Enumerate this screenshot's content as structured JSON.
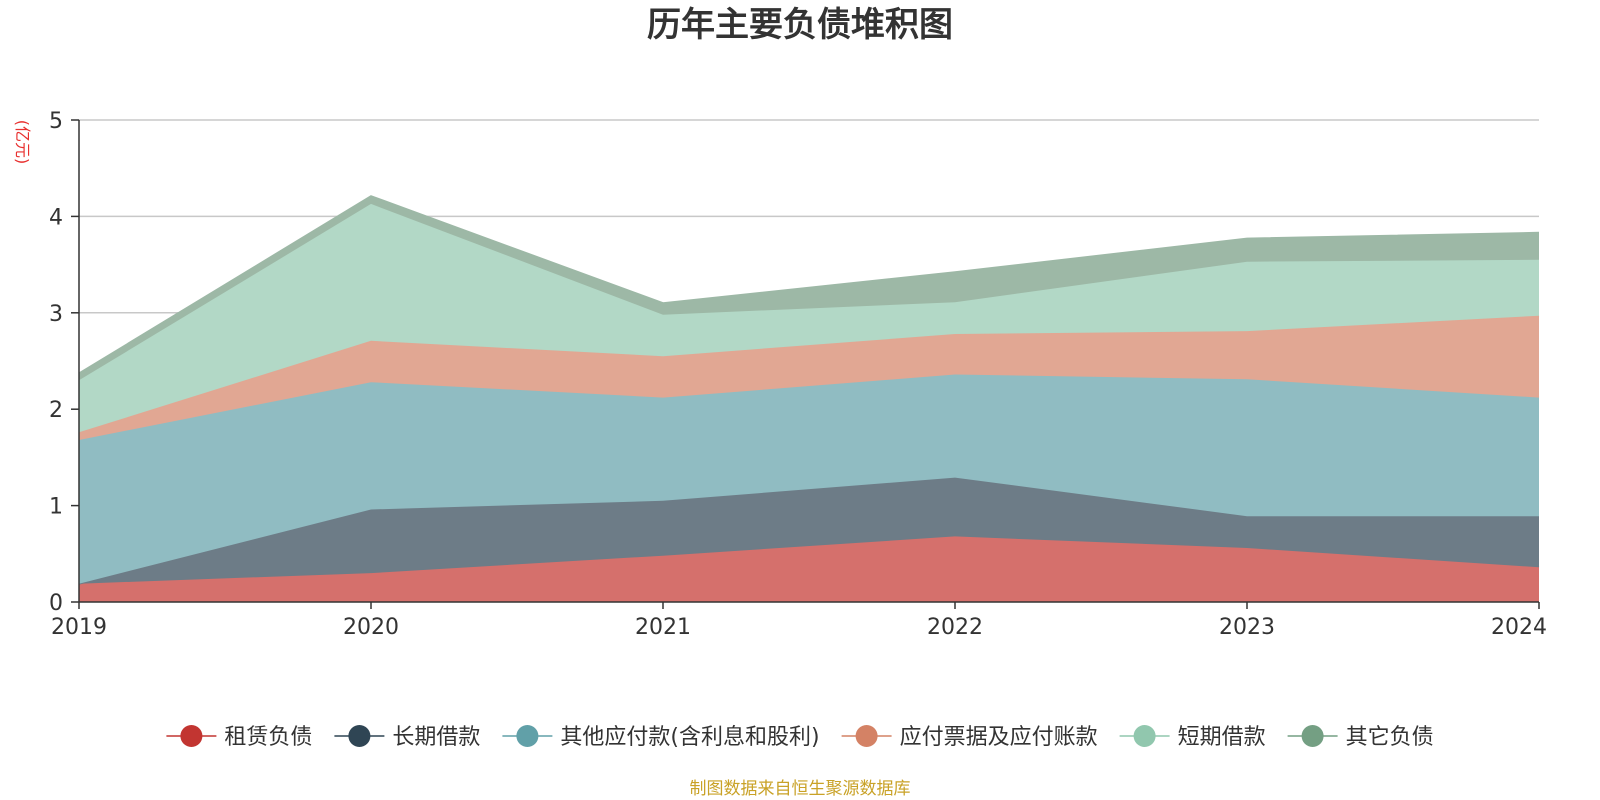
{
  "chart_data": {
    "type": "area",
    "stacked": true,
    "title": "历年主要负债堆积图",
    "unit_label": "(亿元)",
    "x": [
      "2019",
      "2020",
      "2021",
      "2022",
      "2023",
      "2024"
    ],
    "ylim": [
      0,
      5
    ],
    "yticks": [
      "0",
      "1",
      "2",
      "3",
      "4",
      "5"
    ],
    "grid": true,
    "legend_position": "bottom",
    "series": [
      {
        "name": "租赁负债",
        "values": [
          0.19,
          0.3,
          0.48,
          0.68,
          0.56,
          0.36
        ],
        "color": "#c23531",
        "fill": "#d5706c"
      },
      {
        "name": "长期借款",
        "values": [
          0.0,
          0.66,
          0.57,
          0.61,
          0.33,
          0.53
        ],
        "color": "#2f4554",
        "fill": "#6d7c87"
      },
      {
        "name": "其他应付款(含利息和股利)",
        "values": [
          1.49,
          1.32,
          1.07,
          1.07,
          1.42,
          1.23
        ],
        "color": "#61a0a8",
        "fill": "#90bcc2"
      },
      {
        "name": "应付票据及应付账款",
        "values": [
          0.08,
          0.43,
          0.43,
          0.42,
          0.5,
          0.85
        ],
        "color": "#d48265",
        "fill": "#e1a793"
      },
      {
        "name": "短期借款",
        "values": [
          0.54,
          1.42,
          0.43,
          0.33,
          0.72,
          0.58
        ],
        "color": "#91c7ae",
        "fill": "#b2d8c6"
      },
      {
        "name": "其它负债",
        "values": [
          0.07,
          0.08,
          0.12,
          0.31,
          0.24,
          0.28
        ],
        "color": "#749f83",
        "fill": "#9db8a6"
      }
    ],
    "source": "制图数据来自恒生聚源数据库"
  }
}
